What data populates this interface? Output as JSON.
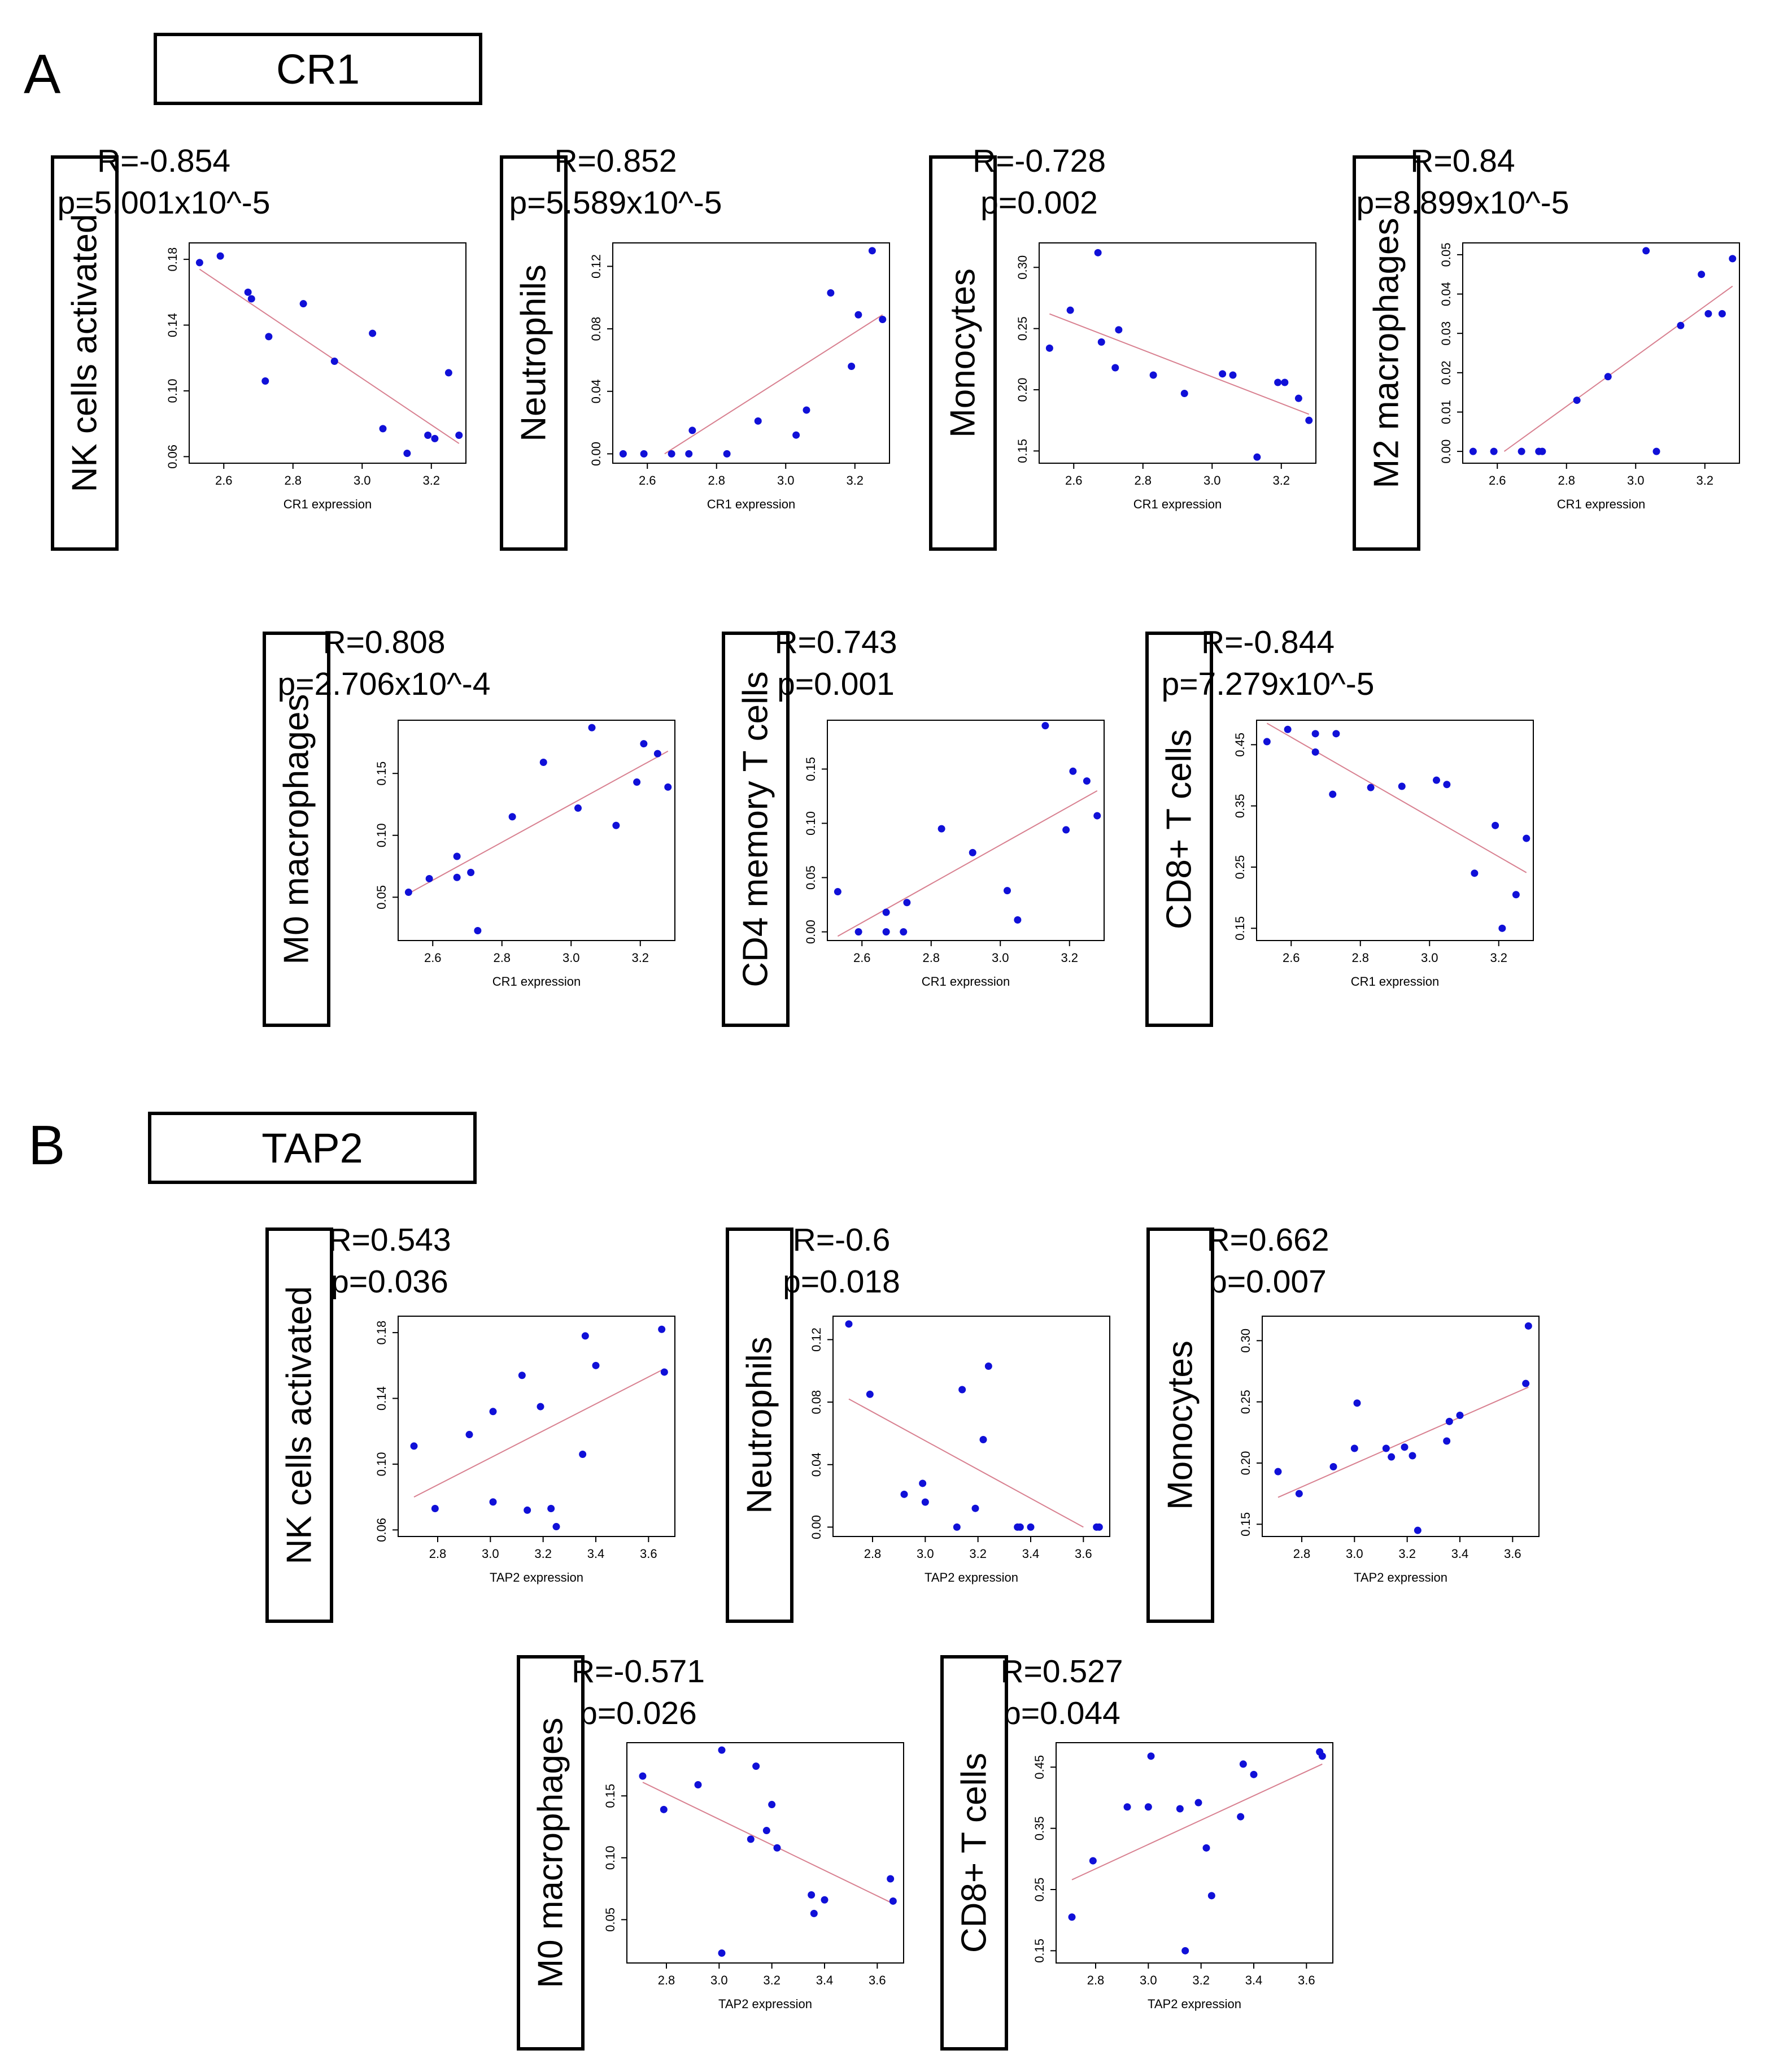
{
  "panels": [
    {
      "letter": "A",
      "gene": "CR1"
    },
    {
      "letter": "B",
      "gene": "TAP2"
    }
  ],
  "colors": {
    "points": "#1010d8",
    "fit_line": "#d88090",
    "frame": "#000000"
  },
  "chart_data": [
    {
      "type": "scatter",
      "gene": "CR1",
      "cell_type": "NK cells activated",
      "r_text": "R=-0.854",
      "p_text": "p=5.001x10^-5",
      "xlabel": "CR1 expression",
      "xlim": [
        2.5,
        3.3
      ],
      "ylim": [
        0.056,
        0.19
      ],
      "xticks": [
        2.6,
        2.8,
        3.0,
        3.2
      ],
      "xtick_labels": [
        "2.6",
        "2.8",
        "3.0",
        "3.2"
      ],
      "yticks": [
        0.06,
        0.1,
        0.14,
        0.18
      ],
      "ytick_labels": [
        "0.06",
        "0.10",
        "0.14",
        "0.18"
      ],
      "points": [
        [
          2.53,
          0.178
        ],
        [
          2.59,
          0.182
        ],
        [
          2.67,
          0.16
        ],
        [
          2.68,
          0.156
        ],
        [
          2.72,
          0.106
        ],
        [
          2.73,
          0.133
        ],
        [
          2.83,
          0.153
        ],
        [
          2.92,
          0.118
        ],
        [
          3.03,
          0.135
        ],
        [
          3.06,
          0.077
        ],
        [
          3.13,
          0.062
        ],
        [
          3.19,
          0.073
        ],
        [
          3.21,
          0.071
        ],
        [
          3.25,
          0.111
        ],
        [
          3.28,
          0.073
        ]
      ],
      "fit": [
        [
          2.53,
          0.174
        ],
        [
          3.28,
          0.068
        ]
      ]
    },
    {
      "type": "scatter",
      "gene": "CR1",
      "cell_type": "Neutrophils",
      "r_text": "R=0.852",
      "p_text": "p=5.589x10^-5",
      "xlabel": "CR1 expression",
      "xlim": [
        2.5,
        3.3
      ],
      "ylim": [
        -0.006,
        0.135
      ],
      "xticks": [
        2.6,
        2.8,
        3.0,
        3.2
      ],
      "xtick_labels": [
        "2.6",
        "2.8",
        "3.0",
        "3.2"
      ],
      "yticks": [
        0.0,
        0.04,
        0.08,
        0.12
      ],
      "ytick_labels": [
        "0.00",
        "0.04",
        "0.08",
        "0.12"
      ],
      "points": [
        [
          2.53,
          0.0
        ],
        [
          2.59,
          0.0
        ],
        [
          2.67,
          0.0
        ],
        [
          2.72,
          0.0
        ],
        [
          2.73,
          0.015
        ],
        [
          2.83,
          0.0
        ],
        [
          2.92,
          0.021
        ],
        [
          3.03,
          0.012
        ],
        [
          3.06,
          0.028
        ],
        [
          3.13,
          0.103
        ],
        [
          3.19,
          0.056
        ],
        [
          3.21,
          0.089
        ],
        [
          3.25,
          0.13
        ],
        [
          3.28,
          0.086
        ]
      ],
      "fit": [
        [
          2.65,
          0.0
        ],
        [
          3.28,
          0.089
        ]
      ]
    },
    {
      "type": "scatter",
      "gene": "CR1",
      "cell_type": "Monocytes",
      "r_text": "R=-0.728",
      "p_text": "p=0.002",
      "xlabel": "CR1 expression",
      "xlim": [
        2.5,
        3.3
      ],
      "ylim": [
        0.14,
        0.32
      ],
      "xticks": [
        2.6,
        2.8,
        3.0,
        3.2
      ],
      "xtick_labels": [
        "2.6",
        "2.8",
        "3.0",
        "3.2"
      ],
      "yticks": [
        0.15,
        0.2,
        0.25,
        0.3
      ],
      "ytick_labels": [
        "0.15",
        "0.20",
        "0.25",
        "0.30"
      ],
      "points": [
        [
          2.53,
          0.234
        ],
        [
          2.59,
          0.265
        ],
        [
          2.67,
          0.312
        ],
        [
          2.68,
          0.239
        ],
        [
          2.72,
          0.218
        ],
        [
          2.73,
          0.249
        ],
        [
          2.83,
          0.212
        ],
        [
          2.92,
          0.197
        ],
        [
          3.03,
          0.213
        ],
        [
          3.06,
          0.212
        ],
        [
          3.13,
          0.145
        ],
        [
          3.19,
          0.206
        ],
        [
          3.21,
          0.206
        ],
        [
          3.25,
          0.193
        ],
        [
          3.28,
          0.175
        ]
      ],
      "fit": [
        [
          2.53,
          0.262
        ],
        [
          3.28,
          0.18
        ]
      ]
    },
    {
      "type": "scatter",
      "gene": "CR1",
      "cell_type": "M2 macrophages",
      "r_text": "R=0.84",
      "p_text": "p=8.899x10^-5",
      "xlabel": "CR1 expression",
      "xlim": [
        2.5,
        3.3
      ],
      "ylim": [
        -0.003,
        0.053
      ],
      "xticks": [
        2.6,
        2.8,
        3.0,
        3.2
      ],
      "xtick_labels": [
        "2.6",
        "2.8",
        "3.0",
        "3.2"
      ],
      "yticks": [
        0.0,
        0.01,
        0.02,
        0.03,
        0.04,
        0.05
      ],
      "ytick_labels": [
        "0.00",
        "0.01",
        "0.02",
        "0.03",
        "0.04",
        "0.05"
      ],
      "points": [
        [
          2.53,
          0.0
        ],
        [
          2.59,
          0.0
        ],
        [
          2.67,
          0.0
        ],
        [
          2.72,
          0.0
        ],
        [
          2.73,
          0.0
        ],
        [
          2.83,
          0.013
        ],
        [
          2.92,
          0.019
        ],
        [
          3.03,
          0.051
        ],
        [
          3.06,
          0.0
        ],
        [
          3.13,
          0.032
        ],
        [
          3.19,
          0.045
        ],
        [
          3.21,
          0.035
        ],
        [
          3.25,
          0.035
        ],
        [
          3.28,
          0.049
        ]
      ],
      "fit": [
        [
          2.62,
          0.0
        ],
        [
          3.28,
          0.042
        ]
      ]
    },
    {
      "type": "scatter",
      "gene": "CR1",
      "cell_type": "M0 macrophages",
      "r_text": "R=0.808",
      "p_text": "p=2.706x10^-4",
      "xlabel": "CR1 expression",
      "xlim": [
        2.5,
        3.3
      ],
      "ylim": [
        0.015,
        0.193
      ],
      "xticks": [
        2.6,
        2.8,
        3.0,
        3.2
      ],
      "xtick_labels": [
        "2.6",
        "2.8",
        "3.0",
        "3.2"
      ],
      "yticks": [
        0.05,
        0.1,
        0.15
      ],
      "ytick_labels": [
        "0.05",
        "0.10",
        "0.15"
      ],
      "points": [
        [
          2.53,
          0.054
        ],
        [
          2.59,
          0.065
        ],
        [
          2.67,
          0.083
        ],
        [
          2.67,
          0.066
        ],
        [
          2.71,
          0.07
        ],
        [
          2.73,
          0.023
        ],
        [
          2.83,
          0.115
        ],
        [
          2.92,
          0.159
        ],
        [
          3.02,
          0.122
        ],
        [
          3.06,
          0.187
        ],
        [
          3.13,
          0.108
        ],
        [
          3.19,
          0.143
        ],
        [
          3.21,
          0.174
        ],
        [
          3.25,
          0.166
        ],
        [
          3.28,
          0.139
        ]
      ],
      "fit": [
        [
          2.53,
          0.053
        ],
        [
          3.28,
          0.168
        ]
      ]
    },
    {
      "type": "scatter",
      "gene": "CR1",
      "cell_type": "CD4 memory T cells",
      "r_text": "R=0.743",
      "p_text": "p=0.001",
      "xlabel": "CR1 expression",
      "xlim": [
        2.5,
        3.3
      ],
      "ylim": [
        -0.008,
        0.195
      ],
      "xticks": [
        2.6,
        2.8,
        3.0,
        3.2
      ],
      "xtick_labels": [
        "2.6",
        "2.8",
        "3.0",
        "3.2"
      ],
      "yticks": [
        0.0,
        0.05,
        0.1,
        0.15
      ],
      "ytick_labels": [
        "0.00",
        "0.05",
        "0.10",
        "0.15"
      ],
      "points": [
        [
          2.53,
          0.037
        ],
        [
          2.59,
          0.0
        ],
        [
          2.67,
          0.018
        ],
        [
          2.67,
          0.0
        ],
        [
          2.72,
          0.0
        ],
        [
          2.73,
          0.027
        ],
        [
          2.83,
          0.095
        ],
        [
          2.92,
          0.073
        ],
        [
          3.02,
          0.038
        ],
        [
          3.05,
          0.011
        ],
        [
          3.13,
          0.19
        ],
        [
          3.19,
          0.094
        ],
        [
          3.21,
          0.148
        ],
        [
          3.25,
          0.139
        ],
        [
          3.28,
          0.107
        ]
      ],
      "fit": [
        [
          2.53,
          -0.004
        ],
        [
          3.28,
          0.13
        ]
      ]
    },
    {
      "type": "scatter",
      "gene": "CR1",
      "cell_type": "CD8+ T cells",
      "r_text": "R=-0.844",
      "p_text": "p=7.279x10^-5",
      "xlabel": "CR1 expression",
      "xlim": [
        2.5,
        3.3
      ],
      "ylim": [
        0.13,
        0.49
      ],
      "xticks": [
        2.6,
        2.8,
        3.0,
        3.2
      ],
      "xtick_labels": [
        "2.6",
        "2.8",
        "3.0",
        "3.2"
      ],
      "yticks": [
        0.15,
        0.25,
        0.35,
        0.45
      ],
      "ytick_labels": [
        "0.15",
        "0.25",
        "0.35",
        "0.45"
      ],
      "points": [
        [
          2.53,
          0.455
        ],
        [
          2.59,
          0.475
        ],
        [
          2.67,
          0.468
        ],
        [
          2.67,
          0.438
        ],
        [
          2.72,
          0.369
        ],
        [
          2.73,
          0.468
        ],
        [
          2.83,
          0.38
        ],
        [
          2.92,
          0.382
        ],
        [
          3.02,
          0.392
        ],
        [
          3.05,
          0.385
        ],
        [
          3.13,
          0.24
        ],
        [
          3.19,
          0.318
        ],
        [
          3.21,
          0.15
        ],
        [
          3.25,
          0.205
        ],
        [
          3.28,
          0.297
        ]
      ],
      "fit": [
        [
          2.53,
          0.485
        ],
        [
          3.28,
          0.241
        ]
      ]
    },
    {
      "type": "scatter",
      "gene": "TAP2",
      "cell_type": "NK cells activated",
      "r_text": "R=0.543",
      "p_text": "p=0.036",
      "xlabel": "TAP2 expression",
      "xlim": [
        2.65,
        3.7
      ],
      "ylim": [
        0.056,
        0.19
      ],
      "xticks": [
        2.8,
        3.0,
        3.2,
        3.4,
        3.6
      ],
      "xtick_labels": [
        "2.8",
        "3.0",
        "3.2",
        "3.4",
        "3.6"
      ],
      "yticks": [
        0.06,
        0.1,
        0.14,
        0.18
      ],
      "ytick_labels": [
        "0.06",
        "0.10",
        "0.14",
        "0.18"
      ],
      "points": [
        [
          2.71,
          0.111
        ],
        [
          2.79,
          0.073
        ],
        [
          2.92,
          0.118
        ],
        [
          3.01,
          0.077
        ],
        [
          3.01,
          0.132
        ],
        [
          3.12,
          0.154
        ],
        [
          3.14,
          0.072
        ],
        [
          3.19,
          0.135
        ],
        [
          3.23,
          0.073
        ],
        [
          3.25,
          0.062
        ],
        [
          3.35,
          0.106
        ],
        [
          3.36,
          0.178
        ],
        [
          3.4,
          0.16
        ],
        [
          3.65,
          0.182
        ],
        [
          3.66,
          0.156
        ]
      ],
      "fit": [
        [
          2.71,
          0.08
        ],
        [
          3.66,
          0.158
        ]
      ]
    },
    {
      "type": "scatter",
      "gene": "TAP2",
      "cell_type": "Neutrophils",
      "r_text": "R=-0.6",
      "p_text": "p=0.018",
      "xlabel": "TAP2 expression",
      "xlim": [
        2.65,
        3.7
      ],
      "ylim": [
        -0.006,
        0.135
      ],
      "xticks": [
        2.8,
        3.0,
        3.2,
        3.4,
        3.6
      ],
      "xtick_labels": [
        "2.8",
        "3.0",
        "3.2",
        "3.4",
        "3.6"
      ],
      "yticks": [
        0.0,
        0.04,
        0.08,
        0.12
      ],
      "ytick_labels": [
        "0.00",
        "0.04",
        "0.08",
        "0.12"
      ],
      "points": [
        [
          2.71,
          0.13
        ],
        [
          2.79,
          0.085
        ],
        [
          2.92,
          0.021
        ],
        [
          2.99,
          0.028
        ],
        [
          3.0,
          0.016
        ],
        [
          3.12,
          0.0
        ],
        [
          3.14,
          0.088
        ],
        [
          3.19,
          0.012
        ],
        [
          3.22,
          0.056
        ],
        [
          3.24,
          0.103
        ],
        [
          3.35,
          0.0
        ],
        [
          3.36,
          0.0
        ],
        [
          3.4,
          0.0
        ],
        [
          3.65,
          0.0
        ],
        [
          3.66,
          0.0
        ]
      ],
      "fit": [
        [
          2.71,
          0.082
        ],
        [
          3.6,
          0.0
        ]
      ]
    },
    {
      "type": "scatter",
      "gene": "TAP2",
      "cell_type": "Monocytes",
      "r_text": "R=0.662",
      "p_text": "p=0.007",
      "xlabel": "TAP2 expression",
      "xlim": [
        2.65,
        3.7
      ],
      "ylim": [
        0.14,
        0.32
      ],
      "xticks": [
        2.8,
        3.0,
        3.2,
        3.4,
        3.6
      ],
      "xtick_labels": [
        "2.8",
        "3.0",
        "3.2",
        "3.4",
        "3.6"
      ],
      "yticks": [
        0.15,
        0.2,
        0.25,
        0.3
      ],
      "ytick_labels": [
        "0.15",
        "0.20",
        "0.25",
        "0.30"
      ],
      "points": [
        [
          2.71,
          0.193
        ],
        [
          2.79,
          0.175
        ],
        [
          2.92,
          0.197
        ],
        [
          3.0,
          0.212
        ],
        [
          3.01,
          0.249
        ],
        [
          3.12,
          0.212
        ],
        [
          3.14,
          0.205
        ],
        [
          3.19,
          0.213
        ],
        [
          3.22,
          0.206
        ],
        [
          3.24,
          0.145
        ],
        [
          3.35,
          0.218
        ],
        [
          3.36,
          0.234
        ],
        [
          3.4,
          0.239
        ],
        [
          3.65,
          0.265
        ],
        [
          3.66,
          0.312
        ]
      ],
      "fit": [
        [
          2.71,
          0.172
        ],
        [
          3.66,
          0.262
        ]
      ]
    },
    {
      "type": "scatter",
      "gene": "TAP2",
      "cell_type": "M0 macrophages",
      "r_text": "R=-0.571",
      "p_text": "p=0.026",
      "xlabel": "TAP2 expression",
      "xlim": [
        2.65,
        3.7
      ],
      "ylim": [
        0.015,
        0.193
      ],
      "xticks": [
        2.8,
        3.0,
        3.2,
        3.4,
        3.6
      ],
      "xtick_labels": [
        "2.8",
        "3.0",
        "3.2",
        "3.4",
        "3.6"
      ],
      "yticks": [
        0.05,
        0.1,
        0.15
      ],
      "ytick_labels": [
        "0.05",
        "0.10",
        "0.15"
      ],
      "points": [
        [
          2.71,
          0.166
        ],
        [
          2.79,
          0.139
        ],
        [
          2.92,
          0.159
        ],
        [
          3.01,
          0.023
        ],
        [
          3.01,
          0.187
        ],
        [
          3.12,
          0.115
        ],
        [
          3.14,
          0.174
        ],
        [
          3.18,
          0.122
        ],
        [
          3.2,
          0.143
        ],
        [
          3.22,
          0.108
        ],
        [
          3.35,
          0.07
        ],
        [
          3.36,
          0.055
        ],
        [
          3.4,
          0.066
        ],
        [
          3.65,
          0.083
        ],
        [
          3.66,
          0.065
        ]
      ],
      "fit": [
        [
          2.71,
          0.161
        ],
        [
          3.66,
          0.063
        ]
      ]
    },
    {
      "type": "scatter",
      "gene": "TAP2",
      "cell_type": "CD8+ T cells",
      "r_text": "R=0.527",
      "p_text": "p=0.044",
      "xlabel": "TAP2 expression",
      "xlim": [
        2.65,
        3.7
      ],
      "ylim": [
        0.13,
        0.49
      ],
      "xticks": [
        2.8,
        3.0,
        3.2,
        3.4,
        3.6
      ],
      "xtick_labels": [
        "2.8",
        "3.0",
        "3.2",
        "3.4",
        "3.6"
      ],
      "yticks": [
        0.15,
        0.25,
        0.35,
        0.45
      ],
      "ytick_labels": [
        "0.15",
        "0.25",
        "0.35",
        "0.45"
      ],
      "points": [
        [
          2.71,
          0.205
        ],
        [
          2.79,
          0.297
        ],
        [
          2.92,
          0.385
        ],
        [
          3.0,
          0.385
        ],
        [
          3.01,
          0.468
        ],
        [
          3.12,
          0.382
        ],
        [
          3.14,
          0.15
        ],
        [
          3.19,
          0.392
        ],
        [
          3.22,
          0.318
        ],
        [
          3.24,
          0.24
        ],
        [
          3.35,
          0.369
        ],
        [
          3.36,
          0.455
        ],
        [
          3.4,
          0.438
        ],
        [
          3.65,
          0.475
        ],
        [
          3.66,
          0.468
        ]
      ],
      "fit": [
        [
          2.71,
          0.266
        ],
        [
          3.66,
          0.455
        ]
      ]
    }
  ]
}
